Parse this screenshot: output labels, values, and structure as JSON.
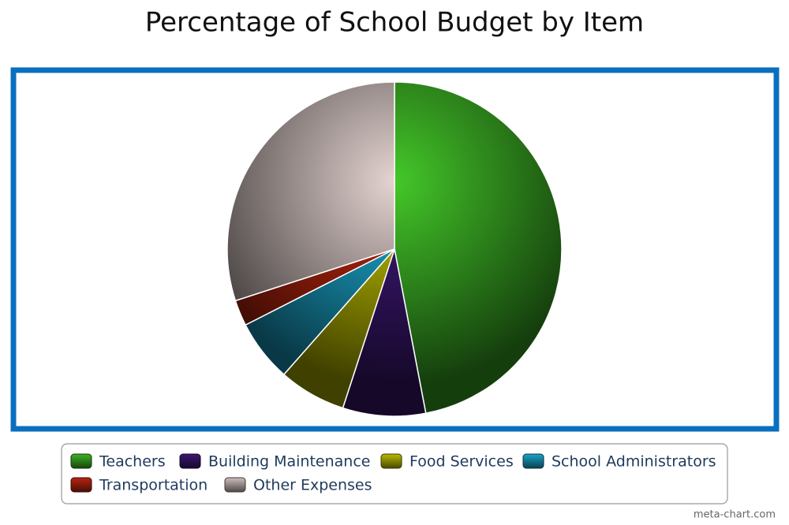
{
  "chart_data": {
    "type": "pie",
    "title": "Percentage of School Budget by Item",
    "categories": [
      "Teachers",
      "Building Maintenance",
      "Food Services",
      "School Administrators",
      "Transportation",
      "Other Expenses"
    ],
    "values": [
      47,
      8,
      6.5,
      6,
      2.5,
      30
    ],
    "colors": [
      "#2f8a1c",
      "#2e1258",
      "#8f8f00",
      "#157f9b",
      "#901c0c",
      "#9e9290"
    ],
    "legend": "bottom",
    "credit": "meta-chart.com"
  }
}
